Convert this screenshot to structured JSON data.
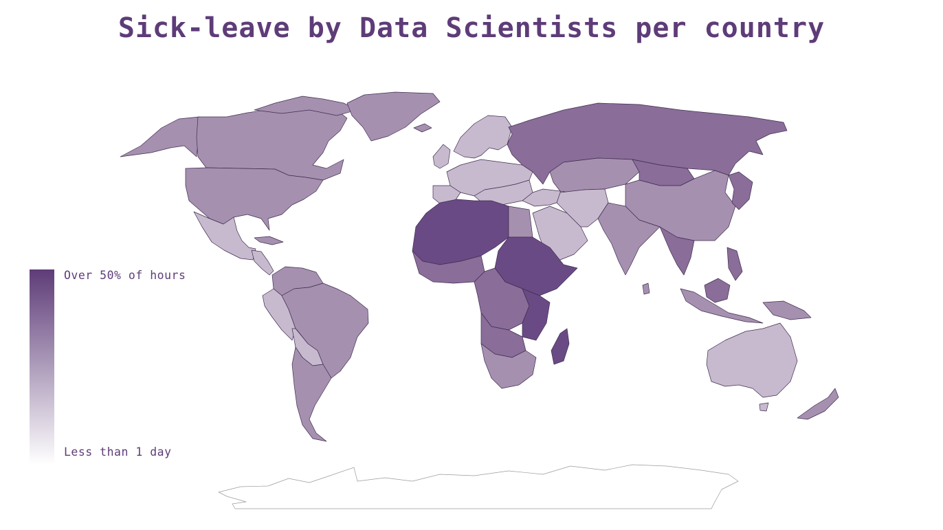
{
  "title": "Sick-leave by Data Scientists per country",
  "legend": {
    "top_label": "Over 50% of hours",
    "bottom_label": "Less than 1 day",
    "color_high": "#5e3c78",
    "color_low": "#ffffff"
  },
  "colors": {
    "title": "#5e3c78",
    "label": "#5e3c78",
    "level_0": "#ffffff",
    "level_1": "#c7bace",
    "level_2": "#a690b0",
    "level_3": "#8a6d99",
    "level_4": "#6a4a84"
  }
}
